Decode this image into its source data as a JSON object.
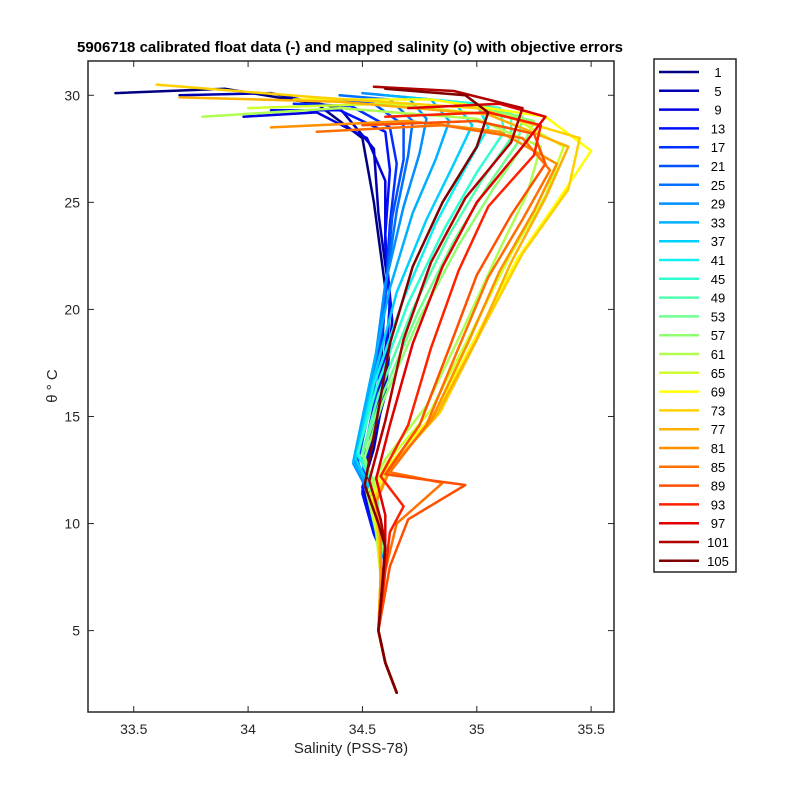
{
  "chart_data": {
    "type": "line",
    "title": "5906718 calibrated float data (-) and mapped salinity (o) with objective errors",
    "xlabel": "Salinity (PSS-78)",
    "ylabel": "θ ° C",
    "xlim": [
      33.3,
      35.6
    ],
    "ylim": [
      1.2,
      31.6
    ],
    "x_ticks": [
      33.5,
      34,
      34.5,
      35,
      35.5
    ],
    "x_tick_labels": [
      "33.5",
      "34",
      "34.5",
      "35",
      "35.5"
    ],
    "y_ticks": [
      5,
      10,
      15,
      20,
      25,
      30
    ],
    "y_tick_labels": [
      "5",
      "10",
      "15",
      "20",
      "25",
      "30"
    ],
    "grid": false,
    "legend_position": "outside-right",
    "series": [
      {
        "name": "1",
        "color": "#000080",
        "x": [
          33.42,
          33.9,
          34.3,
          34.5,
          34.55,
          34.6,
          34.58,
          34.54,
          34.52,
          34.56,
          34.6,
          34.58,
          34.57,
          34.6,
          34.65
        ],
        "y": [
          30.1,
          30.3,
          29.6,
          28.0,
          25.0,
          21.0,
          17.0,
          14.0,
          12.0,
          10.0,
          8.5,
          7.0,
          5.0,
          3.5,
          2.1
        ]
      },
      {
        "name": "5",
        "color": "#0000B0",
        "x": [
          33.7,
          34.1,
          34.4,
          34.55,
          34.57,
          34.62,
          34.6,
          34.55,
          34.5,
          34.55,
          34.6,
          34.58,
          34.57,
          34.6,
          34.65
        ],
        "y": [
          30.0,
          30.1,
          29.4,
          27.5,
          24.5,
          20.5,
          16.5,
          13.5,
          11.7,
          9.8,
          8.4,
          7.0,
          5.0,
          3.5,
          2.1
        ]
      },
      {
        "name": "9",
        "color": "#0000E0",
        "x": [
          33.98,
          34.3,
          34.52,
          34.6,
          34.6,
          34.63,
          34.6,
          34.53,
          34.5,
          34.55,
          34.6,
          34.58,
          34.57,
          34.6,
          34.65
        ],
        "y": [
          29.0,
          29.2,
          28.0,
          26.0,
          23.0,
          19.5,
          16.0,
          13.3,
          11.5,
          9.6,
          8.3,
          7.0,
          5.0,
          3.5,
          2.1
        ]
      },
      {
        "name": "13",
        "color": "#0010FF",
        "x": [
          34.1,
          34.4,
          34.6,
          34.62,
          34.6,
          34.62,
          34.58,
          34.52,
          34.5,
          34.55,
          34.6,
          34.58,
          34.57,
          34.6,
          34.65
        ],
        "y": [
          29.3,
          29.3,
          28.3,
          26.5,
          23.5,
          20.0,
          16.2,
          13.2,
          11.4,
          9.5,
          8.3,
          7.0,
          5.0,
          3.5,
          2.1
        ]
      },
      {
        "name": "17",
        "color": "#0030FF",
        "x": [
          34.2,
          34.45,
          34.62,
          34.65,
          34.62,
          34.6,
          34.57,
          34.5,
          34.52,
          34.56,
          34.6,
          34.58,
          34.57,
          34.6,
          34.65
        ],
        "y": [
          29.6,
          29.5,
          28.5,
          26.8,
          24.0,
          20.5,
          16.5,
          13.0,
          11.3,
          9.4,
          8.2,
          7.0,
          5.0,
          3.5,
          2.1
        ]
      },
      {
        "name": "21",
        "color": "#0050FF",
        "x": [
          34.3,
          34.55,
          34.68,
          34.68,
          34.63,
          34.6,
          34.56,
          34.48,
          34.53,
          34.56,
          34.6,
          34.58,
          34.57,
          34.6,
          34.65
        ],
        "y": [
          29.8,
          29.6,
          28.6,
          27.0,
          24.3,
          20.8,
          16.8,
          12.9,
          11.3,
          9.4,
          8.2,
          7.0,
          5.0,
          3.5,
          2.1
        ]
      },
      {
        "name": "25",
        "color": "#0070FF",
        "x": [
          34.4,
          34.62,
          34.72,
          34.7,
          34.65,
          34.6,
          34.55,
          34.47,
          34.53,
          34.57,
          34.6,
          34.58,
          34.57,
          34.6,
          34.65
        ],
        "y": [
          30.0,
          29.8,
          28.8,
          27.2,
          24.6,
          21.0,
          17.0,
          12.8,
          11.2,
          9.3,
          8.1,
          7.0,
          5.0,
          3.5,
          2.1
        ]
      },
      {
        "name": "29",
        "color": "#0090FF",
        "x": [
          34.5,
          34.7,
          34.78,
          34.75,
          34.68,
          34.6,
          34.55,
          34.46,
          34.54,
          34.57,
          34.6,
          34.58,
          34.57,
          34.6,
          34.65
        ],
        "y": [
          30.1,
          29.9,
          28.9,
          27.3,
          24.8,
          21.2,
          17.2,
          12.8,
          11.2,
          9.3,
          8.1,
          7.0,
          5.0,
          3.5,
          2.1
        ]
      },
      {
        "name": "33",
        "color": "#00B0FF",
        "x": [
          34.6,
          34.8,
          34.88,
          34.82,
          34.72,
          34.62,
          34.54,
          34.46,
          34.55,
          34.58,
          34.6,
          34.58,
          34.57,
          34.6,
          34.65
        ],
        "y": [
          30.0,
          29.8,
          28.8,
          27.0,
          24.5,
          21.0,
          17.0,
          12.9,
          11.3,
          9.4,
          8.1,
          7.0,
          5.0,
          3.5,
          2.1
        ]
      },
      {
        "name": "37",
        "color": "#00D0FF",
        "x": [
          34.7,
          34.9,
          34.98,
          34.9,
          34.78,
          34.65,
          34.55,
          34.47,
          34.55,
          34.58,
          34.6,
          34.58,
          34.57,
          34.6,
          34.65
        ],
        "y": [
          29.9,
          29.7,
          28.6,
          26.8,
          24.2,
          20.8,
          16.8,
          13.0,
          11.4,
          9.5,
          8.2,
          7.0,
          5.0,
          3.5,
          2.1
        ]
      },
      {
        "name": "41",
        "color": "#10F0F0",
        "x": [
          34.8,
          35.0,
          35.05,
          34.95,
          34.82,
          34.68,
          34.55,
          34.48,
          34.56,
          34.58,
          34.6,
          34.58,
          34.57,
          34.6,
          34.65
        ],
        "y": [
          29.8,
          29.6,
          28.5,
          26.6,
          24.0,
          20.5,
          16.5,
          13.2,
          11.5,
          9.6,
          8.2,
          7.0,
          5.0,
          3.5,
          2.1
        ]
      },
      {
        "name": "45",
        "color": "#30FFD0",
        "x": [
          34.9,
          35.1,
          35.12,
          35.0,
          34.86,
          34.7,
          34.56,
          34.48,
          34.56,
          34.58,
          34.6,
          34.58,
          34.57,
          34.6,
          34.65
        ],
        "y": [
          29.7,
          29.4,
          28.3,
          26.4,
          23.8,
          20.3,
          16.3,
          13.3,
          11.6,
          9.6,
          8.2,
          7.0,
          5.0,
          3.5,
          2.1
        ]
      },
      {
        "name": "49",
        "color": "#50FFB0",
        "x": [
          34.95,
          35.15,
          35.15,
          35.02,
          34.88,
          34.72,
          34.57,
          34.5,
          34.56,
          34.58,
          34.6,
          34.58,
          34.57,
          34.6,
          34.65
        ],
        "y": [
          29.5,
          29.2,
          28.0,
          26.0,
          23.5,
          20.0,
          16.0,
          13.3,
          11.6,
          9.6,
          8.2,
          7.0,
          5.0,
          3.5,
          2.1
        ]
      },
      {
        "name": "53",
        "color": "#70FF90",
        "x": [
          35.0,
          35.2,
          35.18,
          35.05,
          34.9,
          34.74,
          34.58,
          34.5,
          34.56,
          34.58,
          34.6,
          34.58,
          34.57,
          34.6,
          34.65
        ],
        "y": [
          29.4,
          29.0,
          27.8,
          25.8,
          23.2,
          19.8,
          15.8,
          13.2,
          11.5,
          9.6,
          8.2,
          7.0,
          5.0,
          3.5,
          2.1
        ]
      },
      {
        "name": "57",
        "color": "#90FF70",
        "x": [
          35.05,
          35.25,
          35.2,
          35.07,
          34.92,
          34.75,
          34.59,
          34.51,
          34.56,
          34.58,
          34.6,
          34.58,
          34.57,
          34.6,
          34.65
        ],
        "y": [
          29.3,
          28.8,
          27.6,
          25.6,
          23.0,
          19.6,
          15.7,
          13.1,
          11.5,
          9.6,
          8.2,
          7.0,
          5.0,
          3.5,
          2.1
        ]
      },
      {
        "name": "61",
        "color": "#B0FF50",
        "x": [
          33.8,
          34.4,
          35.0,
          35.28,
          35.22,
          35.1,
          34.95,
          34.78,
          34.6,
          34.52,
          34.56,
          34.58,
          34.57,
          34.6,
          34.65
        ],
        "y": [
          29.0,
          29.4,
          28.9,
          27.6,
          25.4,
          22.8,
          19.3,
          15.5,
          13.0,
          11.4,
          9.6,
          7.5,
          5.0,
          3.5,
          2.1
        ]
      },
      {
        "name": "65",
        "color": "#D0FF30",
        "x": [
          34.0,
          34.6,
          35.15,
          35.38,
          35.3,
          35.15,
          34.98,
          34.8,
          34.61,
          34.53,
          34.57,
          34.58,
          34.57,
          34.6,
          34.65
        ],
        "y": [
          29.4,
          29.6,
          29.0,
          27.6,
          25.3,
          22.6,
          19.0,
          15.3,
          12.9,
          11.3,
          9.5,
          7.5,
          5.0,
          3.5,
          2.1
        ]
      },
      {
        "name": "69",
        "color": "#FFFF00",
        "x": [
          34.2,
          34.8,
          35.3,
          35.5,
          35.35,
          35.18,
          35.0,
          34.82,
          34.62,
          34.54,
          34.57,
          34.58,
          34.57,
          34.6,
          34.65
        ],
        "y": [
          29.8,
          29.8,
          29.0,
          27.4,
          25.0,
          22.4,
          18.8,
          15.2,
          12.8,
          11.2,
          9.4,
          7.5,
          5.0,
          3.5,
          2.1
        ]
      },
      {
        "name": "73",
        "color": "#FFD000",
        "x": [
          33.6,
          34.3,
          35.0,
          35.45,
          35.4,
          35.2,
          35.02,
          34.84,
          34.63,
          34.55,
          34.57,
          34.58,
          34.57,
          34.6,
          34.65
        ],
        "y": [
          30.5,
          29.9,
          29.4,
          28.0,
          25.6,
          22.6,
          19.0,
          15.2,
          12.7,
          11.1,
          9.4,
          7.5,
          5.0,
          3.5,
          2.1
        ]
      },
      {
        "name": "77",
        "color": "#FFB000",
        "x": [
          33.7,
          34.4,
          35.05,
          35.4,
          35.3,
          35.15,
          35.0,
          34.82,
          34.62,
          34.56,
          34.58,
          34.58,
          34.57,
          34.6,
          34.65
        ],
        "y": [
          29.9,
          29.7,
          29.1,
          27.6,
          25.2,
          22.2,
          18.6,
          15.0,
          12.6,
          11.0,
          9.3,
          7.5,
          5.0,
          3.5,
          2.1
        ]
      },
      {
        "name": "81",
        "color": "#FF9000",
        "x": [
          34.1,
          34.7,
          35.1,
          35.35,
          35.25,
          35.1,
          34.96,
          34.8,
          34.62,
          34.56,
          34.58,
          34.58,
          34.57,
          34.6,
          34.65
        ],
        "y": [
          28.5,
          28.8,
          28.3,
          26.8,
          24.6,
          21.8,
          18.4,
          14.8,
          12.5,
          11.0,
          9.3,
          7.5,
          5.0,
          3.5,
          2.1
        ]
      },
      {
        "name": "85",
        "color": "#FF7000",
        "x": [
          34.3,
          34.85,
          35.2,
          35.32,
          35.2,
          35.05,
          34.92,
          34.78,
          34.62,
          34.85,
          34.65,
          34.6,
          34.57,
          34.6,
          34.65
        ],
        "y": [
          28.3,
          28.6,
          28.0,
          26.5,
          24.2,
          21.5,
          18.2,
          14.6,
          12.4,
          11.9,
          10.0,
          7.8,
          5.0,
          3.5,
          2.1
        ]
      },
      {
        "name": "89",
        "color": "#FF5000",
        "x": [
          34.5,
          35.0,
          35.25,
          35.3,
          35.15,
          35.0,
          34.88,
          34.75,
          34.6,
          34.95,
          34.7,
          34.62,
          34.57,
          34.6,
          34.65
        ],
        "y": [
          28.6,
          28.8,
          28.2,
          26.8,
          24.4,
          21.6,
          18.2,
          14.6,
          12.3,
          11.8,
          10.2,
          8.0,
          5.0,
          3.5,
          2.1
        ]
      },
      {
        "name": "93",
        "color": "#FF2000",
        "x": [
          34.6,
          35.05,
          35.28,
          35.25,
          35.05,
          34.92,
          34.8,
          34.7,
          34.58,
          34.68,
          34.62,
          34.6,
          34.57,
          34.6,
          34.65
        ],
        "y": [
          29.0,
          29.2,
          28.6,
          27.2,
          24.8,
          21.8,
          18.2,
          14.6,
          12.2,
          10.8,
          9.6,
          7.8,
          5.0,
          3.5,
          2.1
        ]
      },
      {
        "name": "97",
        "color": "#E00000",
        "x": [
          34.7,
          35.1,
          35.3,
          35.2,
          35.0,
          34.85,
          34.72,
          34.62,
          34.56,
          34.6,
          34.6,
          34.59,
          34.57,
          34.6,
          34.65
        ],
        "y": [
          29.4,
          29.6,
          29.0,
          27.6,
          25.0,
          22.0,
          18.4,
          14.6,
          12.1,
          10.4,
          9.2,
          7.6,
          5.0,
          3.5,
          2.1
        ]
      },
      {
        "name": "101",
        "color": "#B00000",
        "x": [
          34.55,
          34.9,
          35.2,
          35.15,
          34.95,
          34.8,
          34.68,
          34.6,
          34.53,
          34.58,
          34.6,
          34.59,
          34.57,
          34.6,
          34.65
        ],
        "y": [
          30.4,
          30.2,
          29.4,
          27.8,
          25.2,
          22.2,
          18.6,
          14.8,
          12.0,
          10.2,
          9.0,
          7.5,
          5.0,
          3.5,
          2.1
        ]
      },
      {
        "name": "105",
        "color": "#800000",
        "x": [
          34.6,
          34.95,
          35.05,
          35.0,
          34.85,
          34.72,
          34.62,
          34.56,
          34.51,
          34.57,
          34.6,
          34.59,
          34.57,
          34.6,
          34.65
        ],
        "y": [
          30.3,
          30.0,
          29.2,
          27.6,
          25.0,
          22.0,
          18.4,
          14.7,
          11.8,
          10.0,
          8.9,
          7.4,
          5.0,
          3.5,
          2.1
        ]
      }
    ]
  }
}
